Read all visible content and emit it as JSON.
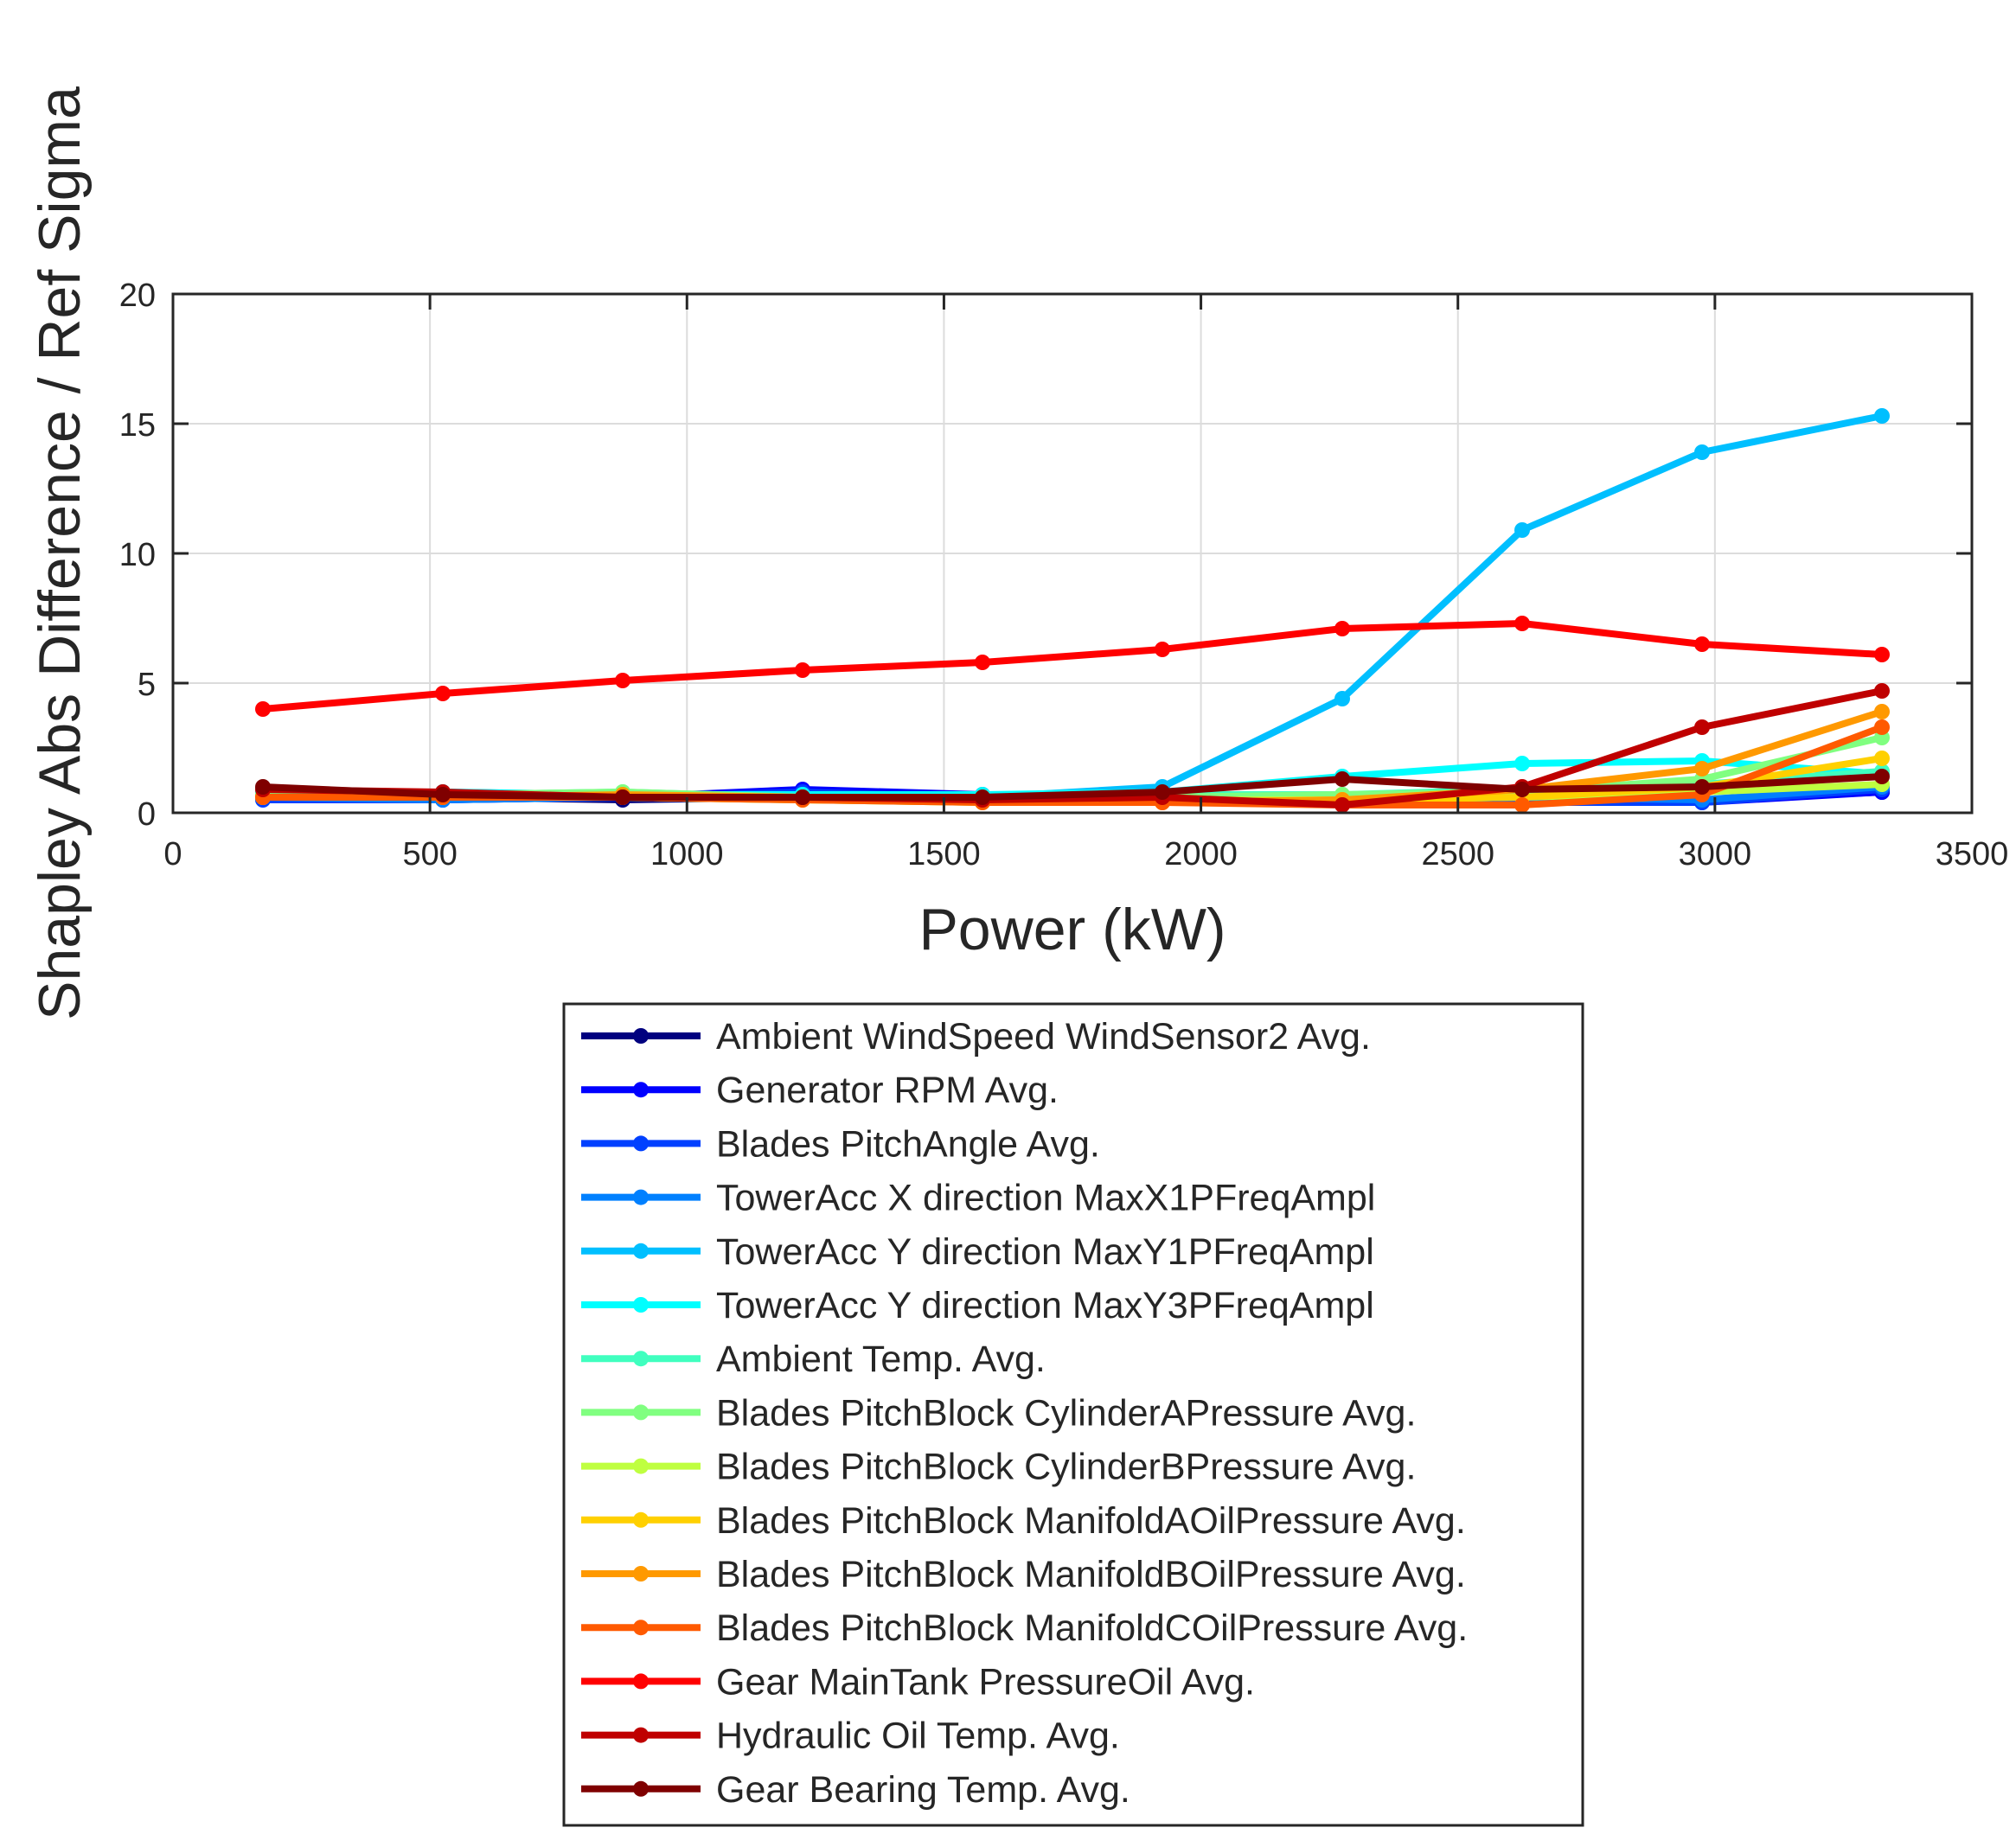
{
  "chart_data": {
    "type": "line",
    "title": "",
    "xlabel": "Power (kW)",
    "ylabel": "Shapley Abs Difference / Ref Sigma",
    "xlim": [
      0,
      3500
    ],
    "ylim": [
      0,
      20
    ],
    "xticks": [
      "0",
      "500",
      "1000",
      "1500",
      "2000",
      "2500",
      "3000",
      "3500"
    ],
    "yticks": [
      "0",
      "5",
      "10",
      "15",
      "20"
    ],
    "grid": true,
    "legend_position": "below",
    "x": [
      175,
      525,
      875,
      1225,
      1575,
      1925,
      2275,
      2625,
      2975,
      3325
    ],
    "series": [
      {
        "name": "Ambient WindSpeed WindSensor2 Avg.",
        "color": "#00007f",
        "values": [
          0.7,
          0.6,
          0.5,
          0.6,
          0.5,
          0.5,
          0.4,
          0.4,
          0.5,
          0.8
        ]
      },
      {
        "name": "Generator RPM Avg.",
        "color": "#0000ff",
        "values": [
          0.6,
          0.5,
          0.6,
          0.9,
          0.7,
          0.6,
          0.5,
          0.5,
          0.4,
          0.8
        ]
      },
      {
        "name": "Blades PitchAngle Avg.",
        "color": "#0040ff",
        "values": [
          0.5,
          0.5,
          0.6,
          0.8,
          0.6,
          0.5,
          0.4,
          0.4,
          0.4,
          0.9
        ]
      },
      {
        "name": "TowerAcc X direction MaxX1PFreqAmpl",
        "color": "#0080ff",
        "values": [
          0.6,
          0.5,
          0.6,
          0.6,
          0.6,
          0.5,
          0.5,
          0.6,
          0.5,
          1.0
        ]
      },
      {
        "name": "TowerAcc Y direction MaxY1PFreqAmpl",
        "color": "#00bfff",
        "values": [
          0.8,
          0.8,
          0.7,
          0.7,
          0.6,
          1.0,
          4.4,
          10.9,
          13.9,
          15.3
        ]
      },
      {
        "name": "TowerAcc Y direction MaxY3PFreqAmpl",
        "color": "#00ffff",
        "values": [
          0.8,
          0.8,
          0.7,
          0.7,
          0.7,
          0.8,
          1.4,
          1.9,
          2.0,
          1.5
        ]
      },
      {
        "name": "Ambient Temp. Avg.",
        "color": "#40ffbf",
        "values": [
          0.7,
          0.7,
          0.8,
          0.6,
          0.6,
          0.7,
          0.7,
          0.9,
          1.1,
          1.6
        ]
      },
      {
        "name": "Blades PitchBlock CylinderAPressure Avg.",
        "color": "#80ff80",
        "values": [
          0.7,
          0.7,
          0.8,
          0.6,
          0.6,
          0.6,
          0.7,
          0.8,
          1.3,
          2.9
        ]
      },
      {
        "name": "Blades PitchBlock CylinderBPressure Avg.",
        "color": "#bfff40",
        "values": [
          0.6,
          0.6,
          0.6,
          0.5,
          0.4,
          0.5,
          0.5,
          0.6,
          0.8,
          1.1
        ]
      },
      {
        "name": "Blades PitchBlock ManifoldAOilPressure Avg.",
        "color": "#ffd000",
        "values": [
          0.6,
          0.6,
          0.6,
          0.5,
          0.4,
          0.4,
          0.5,
          0.6,
          1.0,
          2.1
        ]
      },
      {
        "name": "Blades PitchBlock ManifoldBOilPressure Avg.",
        "color": "#ff9900",
        "values": [
          0.6,
          0.6,
          0.7,
          0.6,
          0.5,
          0.4,
          0.5,
          0.9,
          1.7,
          3.9
        ]
      },
      {
        "name": "Blades PitchBlock ManifoldCOilPressure Avg.",
        "color": "#ff5a00",
        "values": [
          0.6,
          0.6,
          0.6,
          0.5,
          0.4,
          0.4,
          0.3,
          0.3,
          0.7,
          3.3
        ]
      },
      {
        "name": "Gear MainTank PressureOil Avg.",
        "color": "#ff0000",
        "values": [
          4.0,
          4.6,
          5.1,
          5.5,
          5.8,
          6.3,
          7.1,
          7.3,
          6.5,
          6.1
        ]
      },
      {
        "name": "Hydraulic Oil Temp. Avg.",
        "color": "#bf0000",
        "values": [
          0.9,
          0.8,
          0.6,
          0.6,
          0.5,
          0.6,
          0.3,
          1.0,
          3.3,
          4.7
        ]
      },
      {
        "name": "Gear Bearing Temp. Avg.",
        "color": "#7f0000",
        "values": [
          1.0,
          0.7,
          0.6,
          0.6,
          0.6,
          0.8,
          1.3,
          0.9,
          1.0,
          1.4
        ]
      }
    ]
  }
}
